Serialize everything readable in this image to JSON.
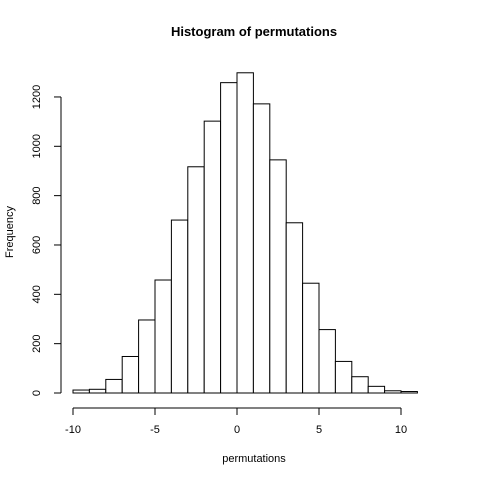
{
  "chart_data": {
    "type": "bar",
    "title": "Histogram of permutations",
    "xlabel": "permutations",
    "ylabel": "Frequency",
    "x_ticks": [
      -10,
      -5,
      0,
      5,
      10
    ],
    "y_ticks": [
      0,
      200,
      400,
      600,
      800,
      1000,
      1200
    ],
    "xlim": [
      -10,
      12
    ],
    "ylim": [
      0,
      1300
    ],
    "bins": [
      {
        "x0": -10,
        "x1": -9,
        "count": 12
      },
      {
        "x0": -9,
        "x1": -8,
        "count": 15
      },
      {
        "x0": -8,
        "x1": -7,
        "count": 55
      },
      {
        "x0": -7,
        "x1": -6,
        "count": 148
      },
      {
        "x0": -6,
        "x1": -5,
        "count": 296
      },
      {
        "x0": -5,
        "x1": -4,
        "count": 458
      },
      {
        "x0": -4,
        "x1": -3,
        "count": 701
      },
      {
        "x0": -3,
        "x1": -2,
        "count": 917
      },
      {
        "x0": -2,
        "x1": -1,
        "count": 1102
      },
      {
        "x0": -1,
        "x1": 0,
        "count": 1258
      },
      {
        "x0": 0,
        "x1": 1,
        "count": 1298
      },
      {
        "x0": 1,
        "x1": 2,
        "count": 1172
      },
      {
        "x0": 2,
        "x1": 3,
        "count": 945
      },
      {
        "x0": 3,
        "x1": 4,
        "count": 690
      },
      {
        "x0": 4,
        "x1": 5,
        "count": 445
      },
      {
        "x0": 5,
        "x1": 6,
        "count": 257
      },
      {
        "x0": 6,
        "x1": 7,
        "count": 128
      },
      {
        "x0": 7,
        "x1": 8,
        "count": 66
      },
      {
        "x0": 8,
        "x1": 9,
        "count": 27
      },
      {
        "x0": 9,
        "x1": 10,
        "count": 9
      },
      {
        "x0": 10,
        "x1": 11,
        "count": 6
      }
    ],
    "grid": false,
    "bar_fill": "#ffffff",
    "bar_stroke": "#000000"
  }
}
